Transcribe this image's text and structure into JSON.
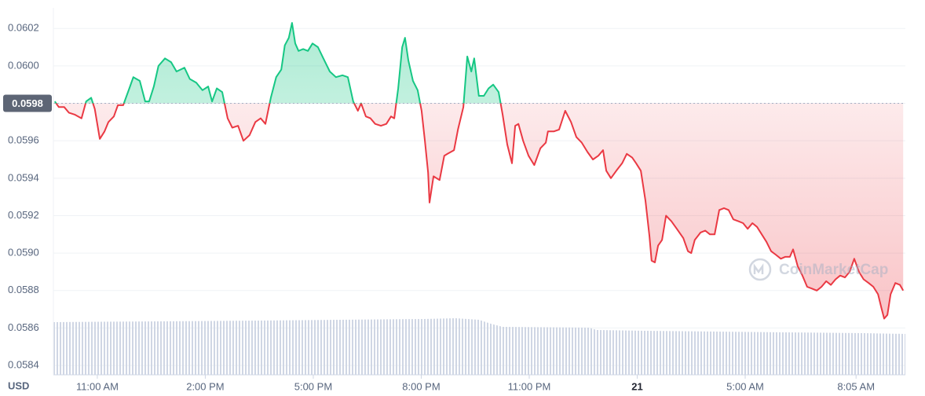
{
  "chart_data": {
    "type": "line",
    "y_label": "USD",
    "watermark": "CoinMarketCap",
    "baseline": 0.0598,
    "up_color": "#16c784",
    "down_color": "#ea3943",
    "grid": true,
    "xlim": [
      9.78,
      33.45
    ],
    "ylim": [
      0.05835,
      0.06031
    ],
    "xticks": [
      {
        "value": 11,
        "label": "11:00 AM"
      },
      {
        "value": 14,
        "label": "2:00 PM"
      },
      {
        "value": 17,
        "label": "5:00 PM"
      },
      {
        "value": 20,
        "label": "8:00 PM"
      },
      {
        "value": 23,
        "label": "11:00 PM"
      },
      {
        "value": 26,
        "label": "21",
        "bold": true
      },
      {
        "value": 29,
        "label": "5:00 AM"
      },
      {
        "value": 32.08,
        "label": "8:05 AM"
      }
    ],
    "yticks": [
      0.0584,
      0.0586,
      0.0588,
      {
        "value": 0.059,
        "label": "0.0590"
      },
      0.0592,
      0.0594,
      0.0596,
      0.0598,
      {
        "value": 0.06,
        "label": "0.0600"
      },
      0.0602
    ],
    "x": [
      9.82,
      9.93,
      10.08,
      10.21,
      10.37,
      10.56,
      10.69,
      10.83,
      10.93,
      11.07,
      11.2,
      11.31,
      11.46,
      11.57,
      11.72,
      11.89,
      12.0,
      12.18,
      12.33,
      12.44,
      12.57,
      12.7,
      12.88,
      13.05,
      13.2,
      13.42,
      13.57,
      13.75,
      13.92,
      14.08,
      14.19,
      14.32,
      14.47,
      14.62,
      14.75,
      14.91,
      15.06,
      15.23,
      15.39,
      15.54,
      15.67,
      15.82,
      15.97,
      16.11,
      16.21,
      16.32,
      16.41,
      16.5,
      16.59,
      16.72,
      16.85,
      16.98,
      17.13,
      17.28,
      17.46,
      17.63,
      17.81,
      17.96,
      18.11,
      18.24,
      18.33,
      18.46,
      18.59,
      18.72,
      18.88,
      19.03,
      19.16,
      19.25,
      19.36,
      19.47,
      19.55,
      19.64,
      19.77,
      19.9,
      20.01,
      20.1,
      20.19,
      20.23,
      20.34,
      20.51,
      20.64,
      20.73,
      20.91,
      21.02,
      21.17,
      21.28,
      21.39,
      21.47,
      21.6,
      21.74,
      21.87,
      22.0,
      22.15,
      22.26,
      22.39,
      22.52,
      22.61,
      22.7,
      22.83,
      22.98,
      23.14,
      23.31,
      23.46,
      23.52,
      23.68,
      23.83,
      24.0,
      24.16,
      24.31,
      24.46,
      24.62,
      24.77,
      24.92,
      25.05,
      25.14,
      25.27,
      25.42,
      25.58,
      25.71,
      25.86,
      25.97,
      26.1,
      26.23,
      26.34,
      26.4,
      26.49,
      26.58,
      26.69,
      26.8,
      26.95,
      27.1,
      27.28,
      27.41,
      27.5,
      27.6,
      27.76,
      27.89,
      28.02,
      28.15,
      28.28,
      28.41,
      28.54,
      28.67,
      28.81,
      28.94,
      29.07,
      29.2,
      29.33,
      29.46,
      29.59,
      29.72,
      29.86,
      29.99,
      30.11,
      30.24,
      30.33,
      30.46,
      30.59,
      30.72,
      30.86,
      30.99,
      31.12,
      31.25,
      31.38,
      31.51,
      31.64,
      31.77,
      31.9,
      32.03,
      32.16,
      32.29,
      32.43,
      32.56,
      32.69,
      32.78,
      32.86,
      32.95,
      33.04,
      33.17,
      33.3,
      33.39
    ],
    "series": [
      {
        "color": "#16c784",
        "values": [
          0.05981,
          0.05978,
          0.05978,
          0.05975,
          0.05974,
          0.05972,
          0.05981,
          0.05983,
          0.05977,
          0.05961,
          0.05965,
          0.0597,
          0.05973,
          0.05979,
          0.05979,
          0.05988,
          0.05994,
          0.05992,
          0.05981,
          0.05981,
          0.05989,
          0.06,
          0.06004,
          0.06002,
          0.05997,
          0.05999,
          0.05993,
          0.05991,
          0.05987,
          0.05989,
          0.05981,
          0.05988,
          0.05986,
          0.05972,
          0.05967,
          0.05968,
          0.0596,
          0.05963,
          0.0597,
          0.05972,
          0.05969,
          0.05983,
          0.05994,
          0.05998,
          0.06011,
          0.06015,
          0.06023,
          0.06012,
          0.06008,
          0.06009,
          0.06008,
          0.06012,
          0.0601,
          0.06004,
          0.05997,
          0.05994,
          0.05995,
          0.05994,
          0.05981,
          0.05976,
          0.0598,
          0.05973,
          0.05972,
          0.05969,
          0.05968,
          0.05969,
          0.05973,
          0.05972,
          0.05988,
          0.0601,
          0.06015,
          0.06003,
          0.05992,
          0.05987,
          0.05976,
          0.0596,
          0.05943,
          0.05927,
          0.05941,
          0.05939,
          0.05952,
          0.05953,
          0.05955,
          0.05966,
          0.05978,
          0.06005,
          0.05997,
          0.06004,
          0.05984,
          0.05984,
          0.05988,
          0.0599,
          0.05986,
          0.05974,
          0.05958,
          0.05948,
          0.05968,
          0.05969,
          0.0596,
          0.05952,
          0.05947,
          0.05956,
          0.05959,
          0.05965,
          0.05965,
          0.05966,
          0.05976,
          0.0597,
          0.05962,
          0.05959,
          0.05954,
          0.0595,
          0.05952,
          0.05955,
          0.05944,
          0.0594,
          0.05944,
          0.05948,
          0.05953,
          0.05951,
          0.05948,
          0.05944,
          0.05928,
          0.05909,
          0.05896,
          0.05895,
          0.05904,
          0.05907,
          0.0592,
          0.05917,
          0.05913,
          0.05908,
          0.05901,
          0.059,
          0.05907,
          0.05911,
          0.05912,
          0.0591,
          0.0591,
          0.05923,
          0.05924,
          0.05923,
          0.05918,
          0.05917,
          0.05916,
          0.05913,
          0.05916,
          0.05914,
          0.0591,
          0.05906,
          0.05901,
          0.05899,
          0.05897,
          0.05898,
          0.05898,
          0.05902,
          0.05893,
          0.05888,
          0.05882,
          0.05881,
          0.0588,
          0.05882,
          0.05885,
          0.05883,
          0.05886,
          0.05888,
          0.05887,
          0.0589,
          0.05897,
          0.0589,
          0.05886,
          0.05884,
          0.05882,
          0.05878,
          0.05871,
          0.05865,
          0.05867,
          0.05878,
          0.05884,
          0.05883,
          0.0588
        ]
      }
    ]
  }
}
